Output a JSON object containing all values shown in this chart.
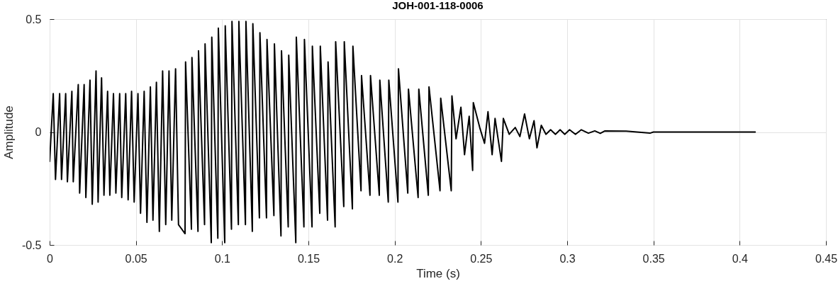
{
  "chart_data": {
    "type": "line",
    "title": "JOH-001-118-0006",
    "xlabel": "Time (s)",
    "ylabel": "Amplitude",
    "x": [
      0,
      0.0021,
      0.0034,
      0.0058,
      0.0069,
      0.0093,
      0.0103,
      0.0129,
      0.0137,
      0.0166,
      0.0174,
      0.02,
      0.021,
      0.0234,
      0.0247,
      0.0269,
      0.0281,
      0.0301,
      0.0315,
      0.0336,
      0.0349,
      0.037,
      0.0384,
      0.0406,
      0.0418,
      0.0441,
      0.0455,
      0.0475,
      0.049,
      0.0512,
      0.0527,
      0.0548,
      0.0564,
      0.0584,
      0.0599,
      0.0619,
      0.0636,
      0.0655,
      0.0673,
      0.0692,
      0.0708,
      0.073,
      0.0747,
      0.0785,
      0.0788,
      0.0822,
      0.0825,
      0.086,
      0.0863,
      0.0898,
      0.0901,
      0.0937,
      0.094,
      0.0975,
      0.0978,
      0.1015,
      0.1018,
      0.1054,
      0.1057,
      0.1094,
      0.1097,
      0.1135,
      0.1138,
      0.1175,
      0.1178,
      0.1216,
      0.1219,
      0.1257,
      0.126,
      0.13,
      0.1303,
      0.1341,
      0.1344,
      0.1383,
      0.1386,
      0.1427,
      0.143,
      0.1474,
      0.1477,
      0.1521,
      0.1523,
      0.1566,
      0.1569,
      0.1611,
      0.1614,
      0.1655,
      0.1658,
      0.1705,
      0.1708,
      0.1755,
      0.1758,
      0.1805,
      0.1808,
      0.1857,
      0.186,
      0.1911,
      0.1914,
      0.1963,
      0.1966,
      0.2019,
      0.2022,
      0.2076,
      0.208,
      0.2136,
      0.214,
      0.2195,
      0.2199,
      0.2263,
      0.2267,
      0.2328,
      0.2332,
      0.2356,
      0.2384,
      0.2405,
      0.2432,
      0.2452,
      0.2456,
      0.2493,
      0.2521,
      0.2541,
      0.2565,
      0.2582,
      0.2619,
      0.263,
      0.2664,
      0.2699,
      0.2726,
      0.2753,
      0.2781,
      0.2808,
      0.2825,
      0.285,
      0.2877,
      0.2904,
      0.2932,
      0.2959,
      0.2986,
      0.3014,
      0.3048,
      0.3082,
      0.3123,
      0.316,
      0.3192,
      0.3219,
      0.3342,
      0.348,
      0.35,
      0.409
    ],
    "series": [
      {
        "color": "#000000",
        "values": [
          -0.13,
          0.17,
          -0.21,
          0.17,
          -0.21,
          0.17,
          -0.22,
          0.18,
          -0.22,
          0.21,
          -0.27,
          0.21,
          -0.29,
          0.23,
          -0.32,
          0.27,
          -0.31,
          0.24,
          -0.28,
          0.18,
          -0.28,
          0.17,
          -0.27,
          0.17,
          -0.29,
          0.17,
          -0.3,
          0.18,
          -0.31,
          0.17,
          -0.36,
          0.18,
          -0.4,
          0.2,
          -0.39,
          0.22,
          -0.44,
          0.27,
          -0.41,
          0.27,
          -0.39,
          0.28,
          -0.41,
          -0.45,
          0.31,
          -0.43,
          0.33,
          -0.44,
          0.36,
          -0.41,
          0.39,
          -0.49,
          0.42,
          -0.47,
          0.46,
          -0.49,
          0.47,
          -0.43,
          0.49,
          -0.41,
          0.49,
          -0.41,
          0.49,
          -0.44,
          0.48,
          -0.38,
          0.44,
          -0.38,
          0.41,
          -0.37,
          0.39,
          -0.46,
          0.36,
          -0.42,
          0.34,
          -0.49,
          0.42,
          -0.42,
          0.41,
          -0.42,
          0.38,
          -0.36,
          0.38,
          -0.39,
          0.31,
          -0.42,
          0.4,
          -0.33,
          0.4,
          -0.34,
          0.38,
          -0.26,
          0.25,
          -0.28,
          0.25,
          -0.28,
          0.23,
          -0.31,
          0.23,
          -0.31,
          0.28,
          -0.27,
          0.19,
          -0.29,
          0.19,
          -0.28,
          0.2,
          -0.26,
          0.15,
          -0.26,
          0.16,
          -0.03,
          0.11,
          -0.1,
          0.07,
          -0.17,
          0.13,
          0.02,
          -0.05,
          0.09,
          -0.1,
          0.06,
          -0.13,
          0.06,
          -0.01,
          0.02,
          -0.02,
          0.08,
          -0.03,
          0.05,
          -0.07,
          0.03,
          -0.01,
          0.01,
          -0.01,
          0.01,
          -0.01,
          0.01,
          -0.01,
          0.01,
          -0.005,
          0.005,
          -0.006,
          0.005,
          0.004,
          -0.005,
          0,
          0
        ]
      }
    ],
    "xlim": [
      0,
      0.45
    ],
    "ylim": [
      -0.5,
      0.5
    ],
    "xticks": [
      0,
      0.05,
      0.1,
      0.15,
      0.2,
      0.25,
      0.3,
      0.35,
      0.4,
      0.45
    ],
    "yticks": [
      -0.5,
      0,
      0.5
    ],
    "grid": true,
    "line_style": "solid"
  }
}
